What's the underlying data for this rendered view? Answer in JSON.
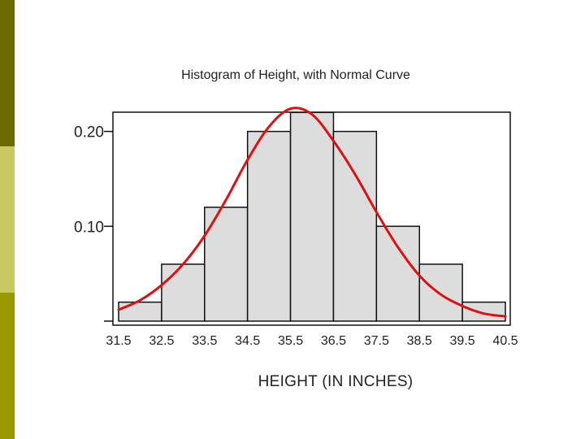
{
  "colors": {
    "side_top": "#6b6b00",
    "side_mid": "#c9c963",
    "side_bot": "#999900",
    "bar_fill": "#dddddd",
    "bar_stroke": "#111111",
    "curve": "#dd1111"
  },
  "chart_data": {
    "type": "bar",
    "title": "Histogram of Height, with Normal Curve",
    "xlabel": "HEIGHT (IN INCHES)",
    "ylabel": "",
    "bin_edges": [
      31.5,
      32.5,
      33.5,
      34.5,
      35.5,
      36.5,
      37.5,
      38.5,
      39.5,
      40.5
    ],
    "x_tick_labels": [
      "31.5",
      "32.5",
      "33.5",
      "34.5",
      "35.5",
      "36.5",
      "37.5",
      "38.5",
      "39.5",
      "40.5"
    ],
    "values": [
      0.02,
      0.06,
      0.12,
      0.2,
      0.22,
      0.2,
      0.1,
      0.06,
      0.02
    ],
    "y_ticks": [
      0,
      0.1,
      0.2
    ],
    "y_tick_labels": [
      "",
      "0.10",
      "0.20"
    ],
    "ylim": [
      0,
      0.24
    ],
    "xlim": [
      31.5,
      40.5
    ],
    "grid": false,
    "series": [
      {
        "type": "line",
        "x": [
          31.5,
          32.0,
          32.5,
          33.0,
          33.5,
          34.0,
          34.5,
          35.0,
          35.5,
          36.0,
          36.5,
          37.0,
          37.5,
          38.0,
          38.5,
          39.0,
          39.5,
          40.0,
          40.5
        ],
        "values": [
          0.012,
          0.022,
          0.038,
          0.06,
          0.09,
          0.128,
          0.17,
          0.205,
          0.224,
          0.218,
          0.19,
          0.155,
          0.115,
          0.078,
          0.048,
          0.028,
          0.016,
          0.008,
          0.005
        ]
      }
    ]
  }
}
